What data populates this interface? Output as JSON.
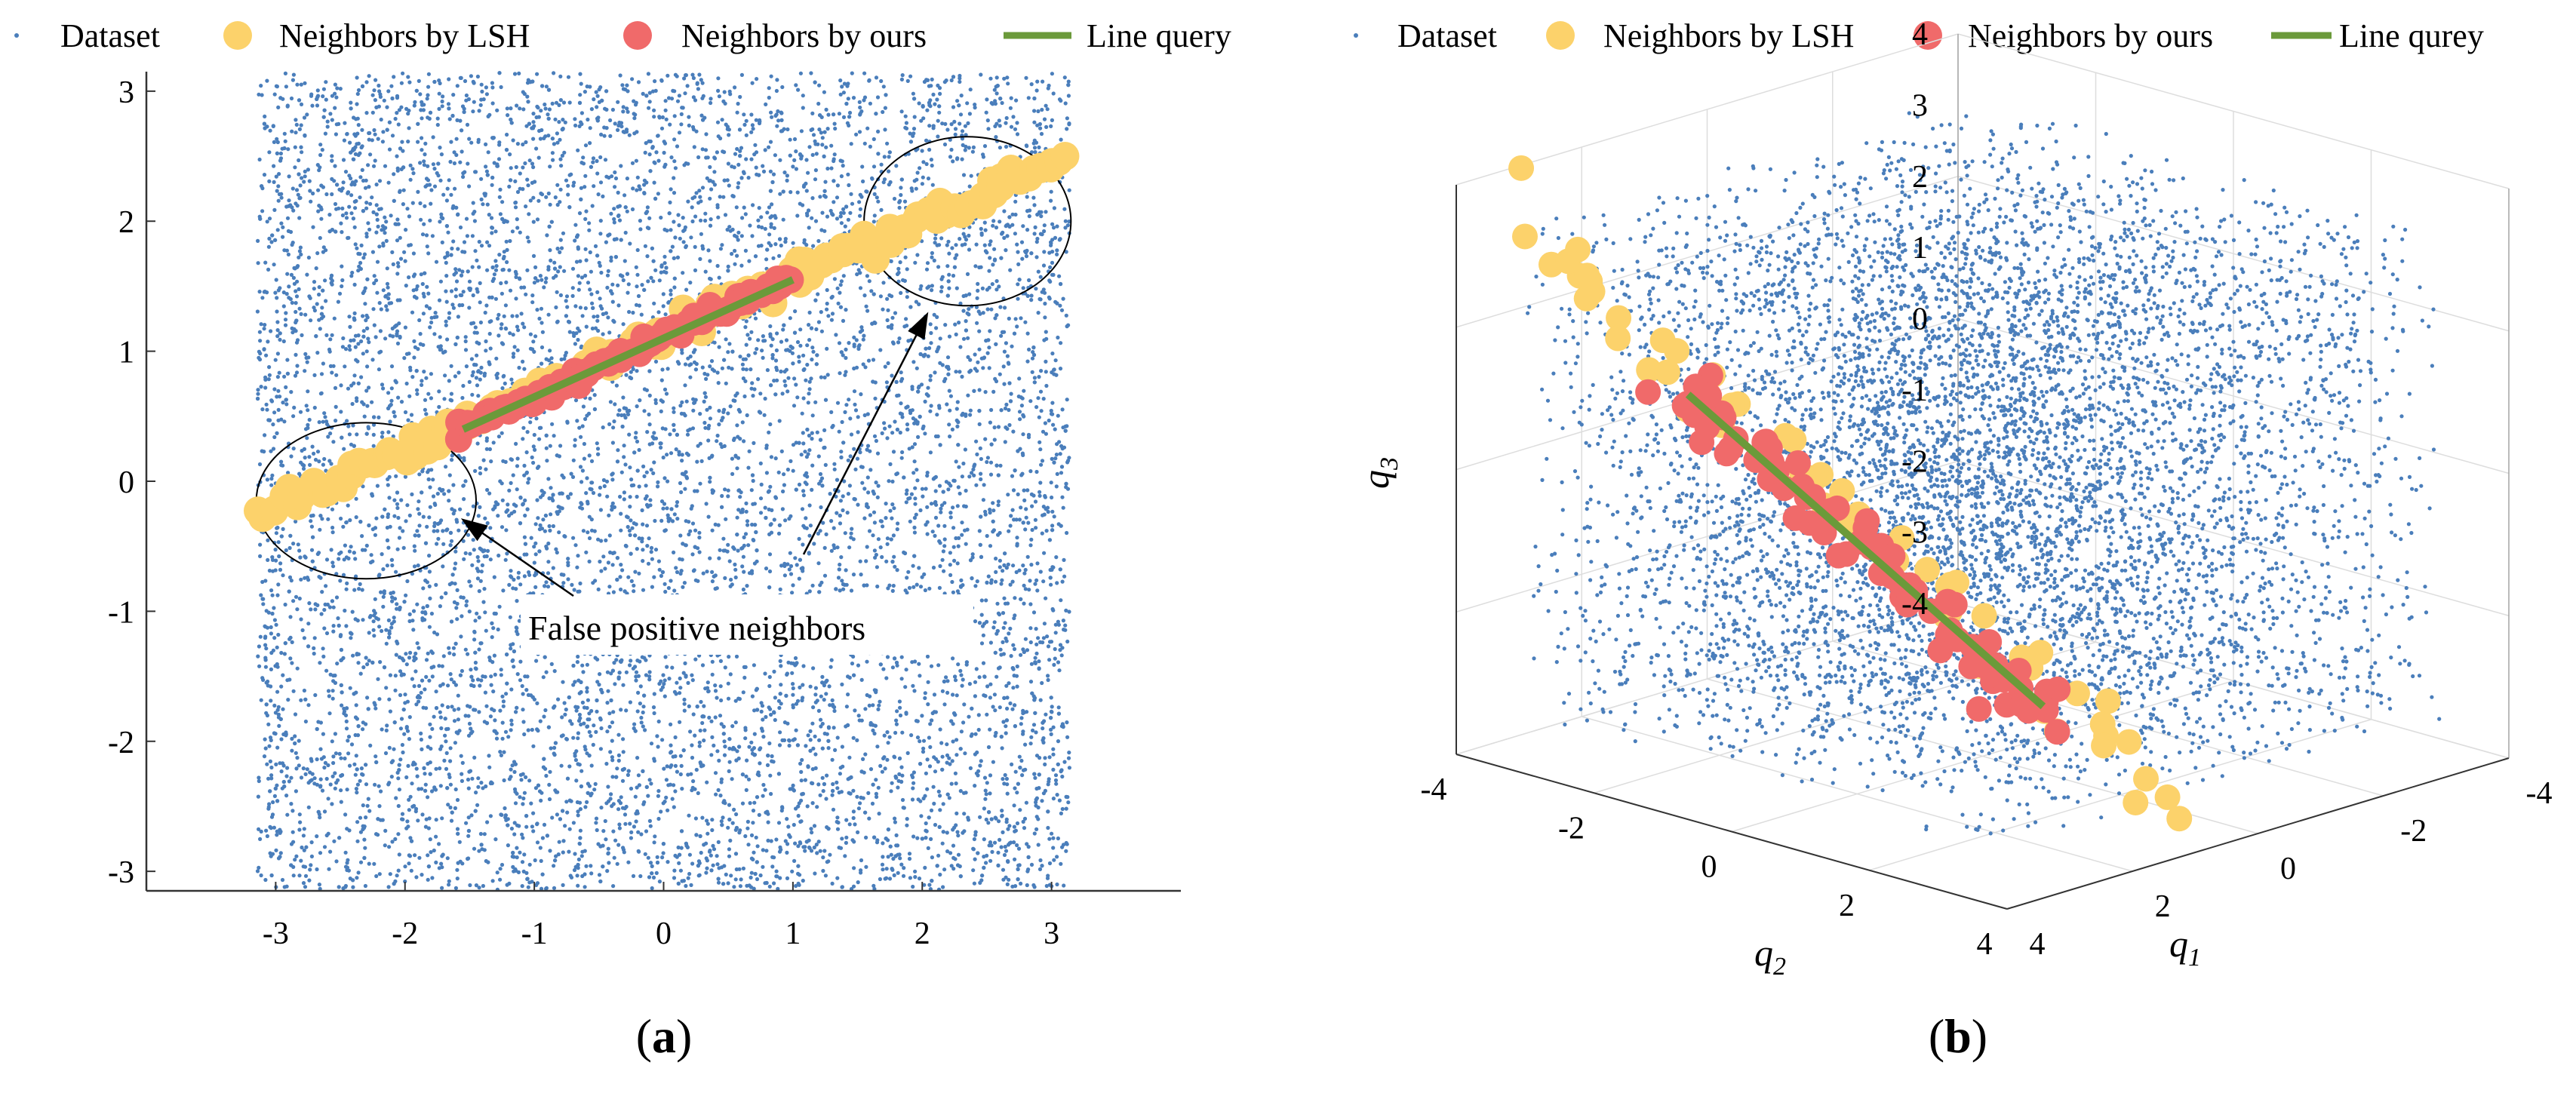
{
  "figure": {
    "panels": [
      {
        "id": "a",
        "label_open": "(",
        "label_letter": "a",
        "label_close": ")"
      },
      {
        "id": "b",
        "label_open": "(",
        "label_letter": "b",
        "label_close": ")"
      }
    ]
  },
  "colors": {
    "dataset": "#4a7ebb",
    "lsh": "#fcd26b",
    "ours": "#f06a6a",
    "query": "#6b9a3a",
    "axis": "#333333",
    "grid": "#dddddd"
  },
  "chart_data": [
    {
      "type": "scatter",
      "panel": "a",
      "title": "",
      "xlabel": "",
      "ylabel": "",
      "xlim": [
        -4,
        4
      ],
      "ylim": [
        -3.15,
        3.15
      ],
      "xticks": [
        -3,
        -2,
        -1,
        0,
        1,
        2,
        3
      ],
      "yticks": [
        -3,
        -2,
        -1,
        0,
        1,
        2,
        3
      ],
      "legend": [
        "Dataset",
        "Neighbors by LSH",
        "Neighbors by ours",
        "Line query"
      ],
      "legend_position": "top",
      "series": [
        {
          "name": "Dataset",
          "kind": "uniform-random",
          "x_range": [
            -3.14,
            3.14
          ],
          "y_range": [
            -3.14,
            3.14
          ],
          "count": 9000
        },
        {
          "name": "Neighbors by LSH",
          "kind": "along-line",
          "from": [
            -3.1,
            -0.25
          ],
          "to": [
            3.1,
            2.5
          ]
        },
        {
          "name": "Neighbors by ours",
          "kind": "along-line",
          "from": [
            -1.6,
            0.38
          ],
          "to": [
            1.0,
            1.57
          ]
        },
        {
          "name": "Line query",
          "kind": "segment",
          "from": [
            -1.55,
            0.4
          ],
          "to": [
            1.0,
            1.55
          ]
        }
      ],
      "annotations": {
        "text": "False positive neighbors",
        "ellipses": [
          {
            "center": [
              -2.3,
              -0.15
            ],
            "rx": 0.85,
            "ry": 0.6
          },
          {
            "center": [
              2.35,
              2.0
            ],
            "rx": 0.8,
            "ry": 0.65
          }
        ]
      }
    },
    {
      "type": "scatter",
      "subtype": "3d",
      "panel": "b",
      "title": "",
      "xlabel": "q1",
      "ylabel": "q2",
      "zlabel": "q3",
      "xlim": [
        -4,
        4
      ],
      "ylim": [
        -4,
        4
      ],
      "zlim": [
        -4,
        4
      ],
      "q1_ticks": [
        "4",
        "2",
        "0",
        "-2",
        "-4"
      ],
      "q2_ticks": [
        "-4",
        "-2",
        "0",
        "2",
        "4"
      ],
      "q3_ticks": [
        "-4",
        "-3",
        "-2",
        "-1",
        "0",
        "1",
        "2",
        "3",
        "4"
      ],
      "legend": [
        "Dataset",
        "Neighbors by LSH",
        "Neighbors by ours",
        "Line qurey"
      ],
      "legend_position": "top",
      "series": [
        {
          "name": "Dataset",
          "kind": "uniform-random-3d",
          "count": 7000
        },
        {
          "name": "Neighbors by LSH",
          "kind": "along-line-3d"
        },
        {
          "name": "Neighbors by ours",
          "kind": "along-line-3d"
        },
        {
          "name": "Line qurey",
          "kind": "segment-3d"
        }
      ]
    }
  ],
  "labels": {
    "a_legend": [
      "Dataset",
      "Neighbors by LSH",
      "Neighbors by ours",
      "Line query"
    ],
    "b_legend": [
      "Dataset",
      "Neighbors by LSH",
      "Neighbors by ours",
      "Line qurey"
    ],
    "annotation": "False positive neighbors",
    "q1_base": "q",
    "q1_sub": "1",
    "q2_base": "q",
    "q2_sub": "2",
    "q3_base": "q",
    "q3_sub": "3"
  }
}
